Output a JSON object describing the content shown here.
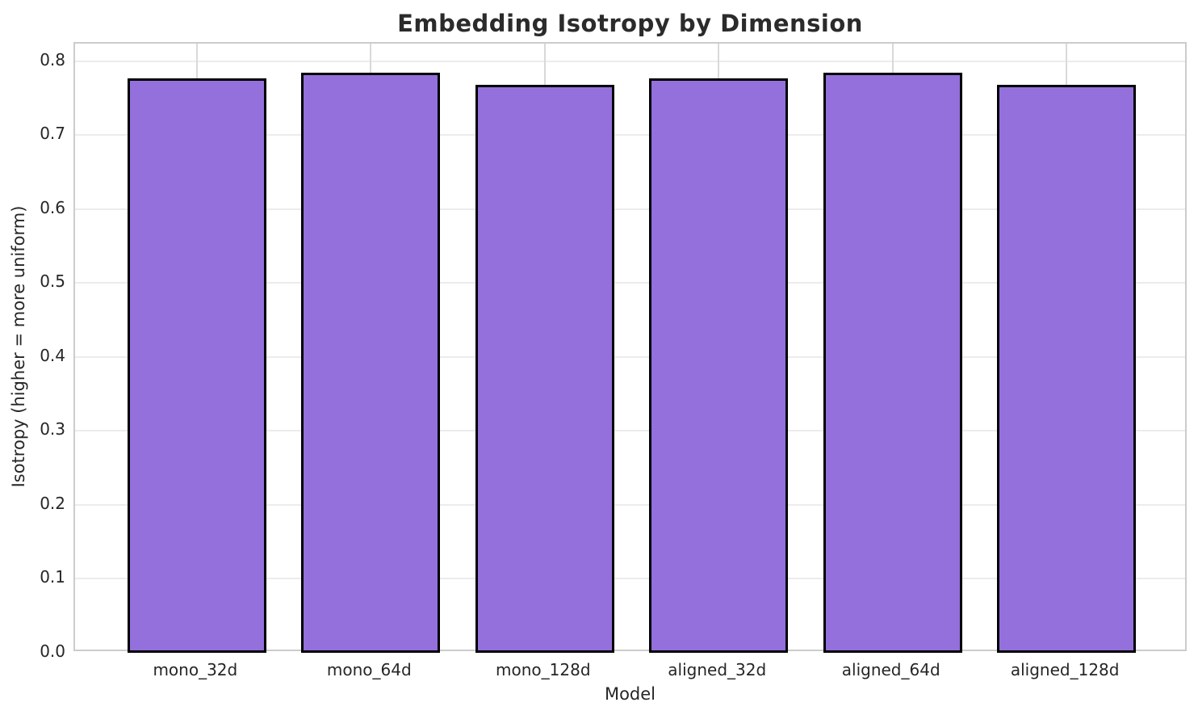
{
  "chart_data": {
    "type": "bar",
    "title": "Embedding Isotropy by Dimension",
    "xlabel": "Model",
    "ylabel": "Isotropy (higher = more uniform)",
    "categories": [
      "mono_32d",
      "mono_64d",
      "mono_128d",
      "aligned_32d",
      "aligned_64d",
      "aligned_128d"
    ],
    "values": [
      0.777,
      0.785,
      0.768,
      0.777,
      0.785,
      0.768
    ],
    "ylim": [
      0,
      0.824
    ],
    "xlim": [
      -0.7,
      5.7
    ],
    "bar_width": 0.8,
    "ytick_values": [
      0.0,
      0.1,
      0.2,
      0.3,
      0.4,
      0.5,
      0.6,
      0.7,
      0.8
    ],
    "ytick_labels": [
      "0.0",
      "0.1",
      "0.2",
      "0.3",
      "0.4",
      "0.5",
      "0.6",
      "0.7",
      "0.8"
    ],
    "grid": true,
    "legend": "none",
    "bar_color": "#9370DB",
    "bar_edge_color": "#000000",
    "grid_color_h": "#ececec",
    "grid_color_v": "#d9d9d9",
    "spine_color": "#cccccc",
    "text_color": "#262626",
    "title_color": "#2b2b2b",
    "background_color": "#ffffff"
  }
}
